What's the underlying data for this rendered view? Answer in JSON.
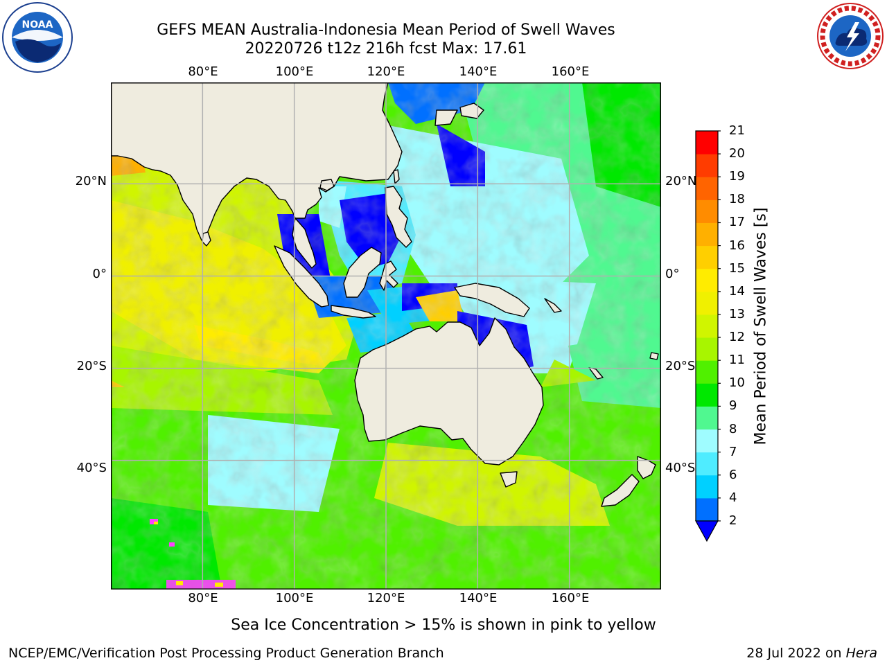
{
  "title": {
    "line1": "GEFS MEAN Australia-Indonesia Mean Period of Swell Waves",
    "line2": "20220726 t12z 216h fcst   Max: 17.61"
  },
  "logos": {
    "left": "noaa-logo",
    "right": "national-weather-service-logo"
  },
  "map": {
    "lon_ticks": [
      "80°E",
      "100°E",
      "120°E",
      "140°E",
      "160°E"
    ],
    "lat_ticks": [
      "20°N",
      "0°",
      "20°S",
      "40°S"
    ],
    "lon_range": [
      60,
      180
    ],
    "lat_range": [
      -68,
      42
    ],
    "gridlines": true,
    "land_color": "#efecdf",
    "grid_color": "#b0b0b0"
  },
  "colorbar": {
    "label": "Mean Period of Swell Waves [s]",
    "ticks": [
      "2",
      "4",
      "6",
      "7",
      "8",
      "9",
      "10",
      "11",
      "12",
      "13",
      "14",
      "15",
      "16",
      "17",
      "18",
      "19",
      "20",
      "21"
    ],
    "colors": [
      "#0070ff",
      "#00d0ff",
      "#4fecff",
      "#9ffcff",
      "#50f890",
      "#00e800",
      "#50f000",
      "#a8f500",
      "#d0f500",
      "#f0f000",
      "#ffec00",
      "#ffcf00",
      "#ffb000",
      "#ff8c00",
      "#ff6400",
      "#ff3c00",
      "#ff0000"
    ],
    "under_color": "#0000ff",
    "extend": "min"
  },
  "notes": {
    "sea_ice": "Sea Ice Concentration > 15% is shown in pink to yellow"
  },
  "footer": {
    "left": "NCEP/EMC/Verification Post Processing Product Generation Branch",
    "date": "28 Jul 2022 on ",
    "machine": "Hera"
  }
}
